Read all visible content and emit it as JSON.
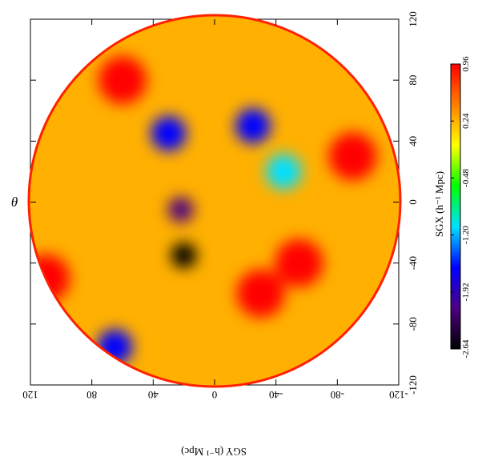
{
  "chart_data": {
    "type": "heatmap",
    "title": "",
    "panel_label": "θ",
    "xlabel": "SGY (h⁻¹ Mpc)",
    "ylabel": "SGX (h⁻¹ Mpc)",
    "x_ticks": [
      "120",
      "80",
      "40",
      "0",
      "-40",
      "-80",
      "-120"
    ],
    "y_ticks": [
      "120",
      "80",
      "40",
      "0",
      "-40",
      "-80",
      "-120"
    ],
    "xlim": [
      120,
      -120
    ],
    "ylim": [
      -120,
      120
    ],
    "colorbar": {
      "label": "",
      "ticks": [
        "0.96",
        "0.24",
        "-0.48",
        "-1.20",
        "-1.92",
        "-2.64"
      ],
      "range": [
        -2.64,
        0.96
      ],
      "colors": [
        "#000000",
        "#4b0082",
        "#0000ff",
        "#00e0ff",
        "#00ff00",
        "#ffff00",
        "#ff8000",
        "#ff0000"
      ]
    },
    "features": [
      {
        "name": "void",
        "sgy": 20,
        "sgx": -35,
        "value": -2.6
      },
      {
        "name": "void",
        "sgy": 22,
        "sgx": -5,
        "value": -2.1
      },
      {
        "name": "void",
        "sgy": 30,
        "sgx": 45,
        "value": -1.5
      },
      {
        "name": "void",
        "sgy": -25,
        "sgx": 50,
        "value": -1.4
      },
      {
        "name": "void",
        "sgy": -45,
        "sgx": 20,
        "value": -1.2
      },
      {
        "name": "void",
        "sgy": 65,
        "sgx": -95,
        "value": -1.4
      },
      {
        "name": "overdensity",
        "sgy": 110,
        "sgx": -50,
        "value": 0.9
      },
      {
        "name": "overdensity",
        "sgy": 60,
        "sgx": 80,
        "value": 0.8
      },
      {
        "name": "overdensity",
        "sgy": -90,
        "sgx": 30,
        "value": 0.9
      },
      {
        "name": "overdensity",
        "sgy": -55,
        "sgx": -40,
        "value": 0.8
      },
      {
        "name": "overdensity",
        "sgy": -30,
        "sgx": -60,
        "value": 0.8
      }
    ],
    "grid": false,
    "orientation": "rotated 180 degrees"
  }
}
